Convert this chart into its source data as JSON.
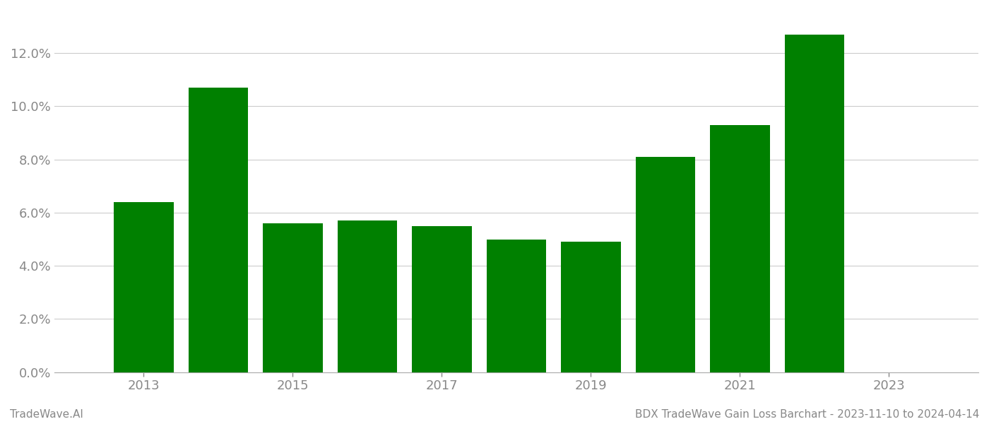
{
  "years": [
    2013,
    2014,
    2015,
    2016,
    2017,
    2018,
    2019,
    2020,
    2021,
    2022
  ],
  "values": [
    0.064,
    0.107,
    0.056,
    0.057,
    0.055,
    0.05,
    0.049,
    0.081,
    0.093,
    0.127
  ],
  "bar_color": "#008000",
  "background_color": "#ffffff",
  "grid_color": "#cccccc",
  "title_text": "BDX TradeWave Gain Loss Barchart - 2023-11-10 to 2024-04-14",
  "watermark_text": "TradeWave.AI",
  "ylim_min": 0.0,
  "ylim_max": 0.136,
  "yticks": [
    0.0,
    0.02,
    0.04,
    0.06,
    0.08,
    0.1,
    0.12
  ],
  "xlabel_color": "#888888",
  "title_color": "#888888",
  "watermark_color": "#888888",
  "bar_width": 0.8,
  "xtick_positions": [
    2013,
    2015,
    2017,
    2019,
    2021,
    2023
  ],
  "xlim_min": 2011.8,
  "xlim_max": 2024.2
}
